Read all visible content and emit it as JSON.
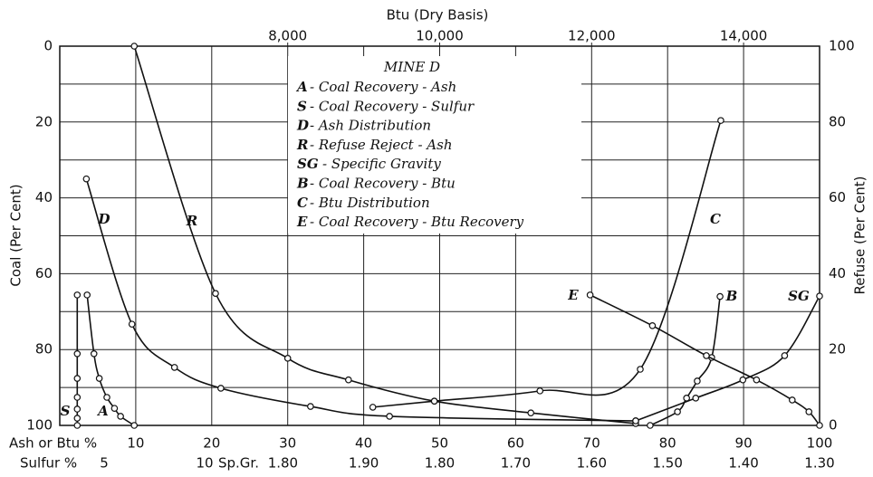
{
  "chart_data": {
    "type": "line",
    "title": "MINE D",
    "xlabel": "Ash or Btu %",
    "ylabel": "Coal (Per Cent)",
    "y2label": "Refuse (Per Cent)",
    "x2label": "Btu (Dry Basis)",
    "xlim": [
      0,
      100
    ],
    "xticks": [
      10,
      20,
      30,
      40,
      50,
      60,
      70,
      80,
      90,
      100
    ],
    "ylim": [
      100,
      0
    ],
    "yticks": [
      0,
      20,
      40,
      60,
      80,
      100
    ],
    "minor_yticks": [
      10,
      30,
      50,
      70,
      90
    ],
    "y2lim": [
      0,
      100
    ],
    "y2ticks": [
      0,
      20,
      40,
      60,
      80,
      100
    ],
    "x2lim": [
      5000,
      15000
    ],
    "x2ticks": [
      {
        "value": 8000,
        "label": "8,000"
      },
      {
        "value": 10000,
        "label": "10,000"
      },
      {
        "value": 12000,
        "label": "12,000"
      },
      {
        "value": 14000,
        "label": "14,000"
      }
    ],
    "sulfur_label": "Sulfur %",
    "sulfur_ticks": [
      5,
      10
    ],
    "sp_gr_label": "Sp.Gr.",
    "sp_gr_ticks": [
      "1.80",
      "1.90",
      "1.80",
      "1.70",
      "1.60",
      "1.50",
      "1.40",
      "1.30"
    ],
    "grid": true,
    "legend": [
      {
        "key": "A",
        "text": "- Coal Recovery - Ash"
      },
      {
        "key": "S",
        "text": "- Coal Recovery - Sulfur"
      },
      {
        "key": "D",
        "text": "- Ash Distribution"
      },
      {
        "key": "R",
        "text": "- Refuse Reject - Ash"
      },
      {
        "key": "SG",
        "text": "- Specific Gravity"
      },
      {
        "key": "B",
        "text": "- Coal Recovery - Btu"
      },
      {
        "key": "C",
        "text": "- Btu Distribution"
      },
      {
        "key": "E",
        "text": "- Coal Recovery - Btu Recovery"
      }
    ],
    "series": [
      {
        "name": "A",
        "color": "#111",
        "x": [
          3.6,
          4.5,
          5.2,
          6.2,
          7.2,
          8,
          9.8
        ],
        "values": [
          65.6,
          81.1,
          87.6,
          92.6,
          95.5,
          97.6,
          100
        ]
      },
      {
        "name": "S",
        "color": "#111",
        "x": [
          2.3,
          2.3,
          2.3,
          2.3,
          2.3,
          2.3,
          2.3
        ],
        "values": [
          65.6,
          81.1,
          87.6,
          92.6,
          95.7,
          98.1,
          100
        ]
      },
      {
        "name": "D",
        "color": "#111",
        "x": [
          3.5,
          9.5,
          15.1,
          21.2,
          33,
          43.4,
          75.8
        ],
        "values": [
          35,
          73.3,
          84.7,
          90.2,
          95,
          97.6,
          98.8
        ]
      },
      {
        "name": "R",
        "color": "#111",
        "x": [
          9.8,
          20.5,
          30,
          38,
          49.3,
          62,
          75.8
        ],
        "values": [
          0,
          65.2,
          82.3,
          88,
          93.6,
          96.7,
          99.5
        ]
      },
      {
        "name": "SG",
        "color": "#111",
        "x": [
          100,
          95.4,
          89.9,
          83.7,
          75.8
        ],
        "values": [
          65.9,
          81.6,
          88,
          92.8,
          98.8
        ]
      },
      {
        "name": "B",
        "color": "#111",
        "x": [
          86.9,
          85.8,
          83.9,
          82.5,
          81.3,
          77.7
        ],
        "values": [
          66,
          82.1,
          88.3,
          92.8,
          96.4,
          100
        ]
      },
      {
        "name": "C",
        "color": "#111",
        "x": [
          87,
          76.4,
          63.2,
          49.3,
          41.2
        ],
        "values": [
          19.6,
          85.2,
          90.9,
          93.6,
          95.2
        ]
      },
      {
        "name": "E",
        "color": "#111",
        "x": [
          69.8,
          78,
          85.1,
          91.7,
          96.4,
          98.6,
          100
        ],
        "values": [
          65.6,
          73.7,
          81.6,
          88,
          93.3,
          96.4,
          100
        ]
      }
    ]
  }
}
